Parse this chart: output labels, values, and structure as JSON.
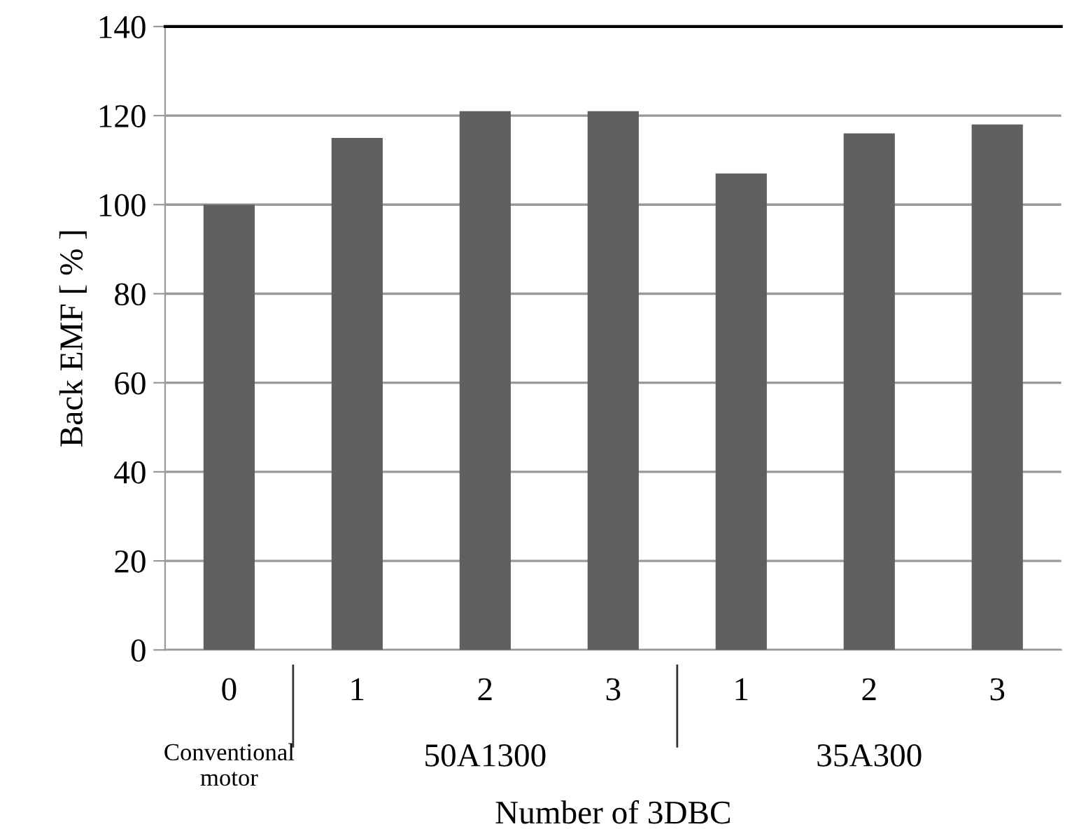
{
  "chart_data": {
    "type": "bar",
    "ylabel": "Back EMF [ % ]",
    "xlabel": "Number of 3DBC",
    "categories": [
      "0",
      "1",
      "2",
      "3",
      "1",
      "2",
      "3"
    ],
    "values": [
      100,
      115,
      121,
      121,
      107,
      116,
      118
    ],
    "color": "#606060",
    "ylim": [
      0,
      140
    ],
    "yticks": [
      0,
      20,
      40,
      60,
      80,
      100,
      120,
      140
    ],
    "grid": "y",
    "annotations": [
      "Conventional\nmotor",
      "50A1300",
      "35A300"
    ]
  }
}
